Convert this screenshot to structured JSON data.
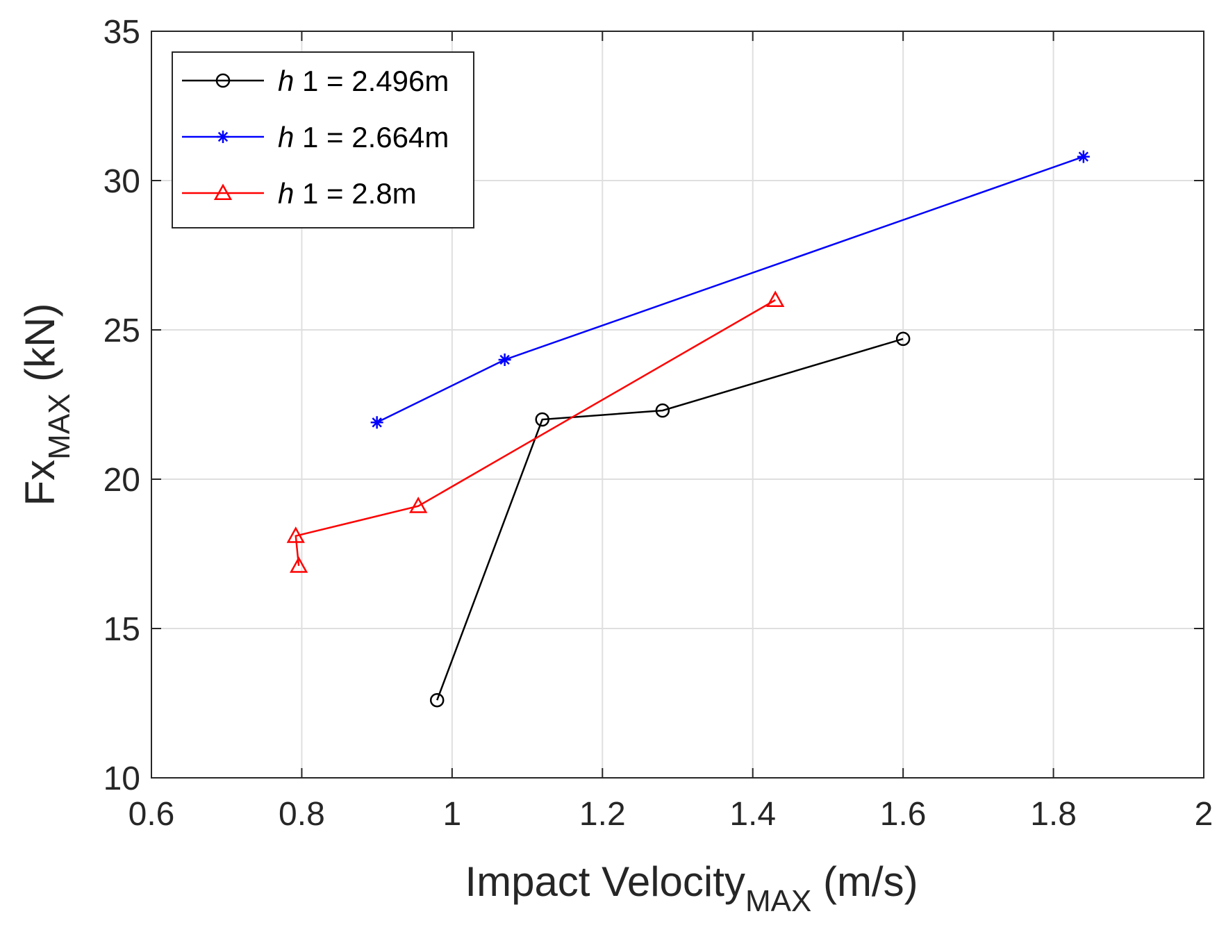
{
  "chart_data": {
    "type": "line",
    "xlabel": {
      "main": "Impact Velocity",
      "sub": "MAX",
      "suffix": " (m/s)"
    },
    "ylabel": {
      "main": "Fx",
      "sub": "MAX",
      "suffix": " (kN)"
    },
    "xlim": [
      0.6,
      2
    ],
    "ylim": [
      10,
      35
    ],
    "xticks": [
      0.6,
      0.8,
      1,
      1.2,
      1.4,
      1.6,
      1.8,
      2
    ],
    "yticks": [
      10,
      15,
      20,
      25,
      30,
      35
    ],
    "xtick_labels": [
      "0.6",
      "0.8",
      "1",
      "1.2",
      "1.4",
      "1.6",
      "1.8",
      "2"
    ],
    "ytick_labels": [
      "10",
      "15",
      "20",
      "25",
      "30",
      "35"
    ],
    "grid": true,
    "legend_position": "top-left",
    "series": [
      {
        "name": "h 1 = 2.496m",
        "legend_var": "h",
        "legend_rest": " 1 = 2.496m",
        "color": "#000000",
        "marker": "circle",
        "x": [
          0.98,
          1.12,
          1.28,
          1.6
        ],
        "y": [
          12.6,
          22.0,
          22.3,
          24.7
        ]
      },
      {
        "name": "h 1 = 2.664m",
        "legend_var": "h",
        "legend_rest": " 1 = 2.664m",
        "color": "#0000ff",
        "marker": "asterisk",
        "x": [
          0.9,
          1.07,
          1.84
        ],
        "y": [
          21.9,
          24.0,
          30.8
        ]
      },
      {
        "name": "h 1 = 2.8m",
        "legend_var": "h",
        "legend_rest": " 1 = 2.8m",
        "color": "#ff0000",
        "marker": "triangle",
        "x": [
          0.796,
          0.792,
          0.955,
          1.43
        ],
        "y": [
          17.1,
          18.1,
          19.1,
          26.0
        ]
      }
    ]
  }
}
